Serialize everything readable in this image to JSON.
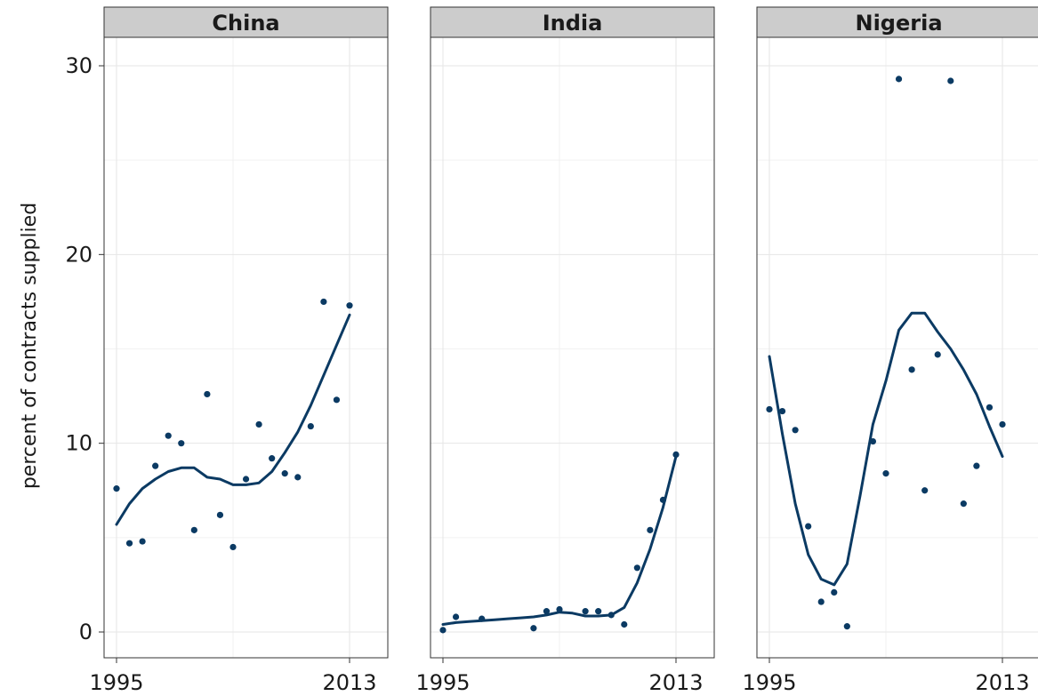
{
  "chart_data": {
    "type": "scatter",
    "ylabel": "percent of contracts supplied",
    "xlim": [
      1995,
      2013
    ],
    "ylim": [
      0,
      30
    ],
    "x_ticks": [
      1995,
      2013
    ],
    "y_ticks": [
      0,
      10,
      20,
      30
    ],
    "point_color": "#0b3a63",
    "line_color": "#0b3a63",
    "strip_color": "#cccccc",
    "grid": true,
    "panels": [
      {
        "name": "China",
        "points": [
          [
            1995,
            7.6
          ],
          [
            1996,
            4.7
          ],
          [
            1997,
            4.8
          ],
          [
            1998,
            8.8
          ],
          [
            1999,
            10.4
          ],
          [
            2000,
            10.0
          ],
          [
            2001,
            5.4
          ],
          [
            2002,
            12.6
          ],
          [
            2003,
            6.2
          ],
          [
            2004,
            4.5
          ],
          [
            2005,
            8.1
          ],
          [
            2006,
            11.0
          ],
          [
            2007,
            9.2
          ],
          [
            2008,
            8.4
          ],
          [
            2009,
            8.2
          ],
          [
            2010,
            10.9
          ],
          [
            2011,
            17.5
          ],
          [
            2012,
            12.3
          ],
          [
            2013,
            17.3
          ]
        ],
        "smooth": [
          [
            1995,
            5.7
          ],
          [
            1996,
            6.8
          ],
          [
            1997,
            7.6
          ],
          [
            1998,
            8.1
          ],
          [
            1999,
            8.5
          ],
          [
            2000,
            8.7
          ],
          [
            2001,
            8.7
          ],
          [
            2002,
            8.2
          ],
          [
            2003,
            8.1
          ],
          [
            2004,
            7.8
          ],
          [
            2005,
            7.8
          ],
          [
            2006,
            7.9
          ],
          [
            2007,
            8.5
          ],
          [
            2008,
            9.5
          ],
          [
            2009,
            10.6
          ],
          [
            2010,
            12.0
          ],
          [
            2011,
            13.6
          ],
          [
            2012,
            15.2
          ],
          [
            2013,
            16.8
          ]
        ]
      },
      {
        "name": "India",
        "points": [
          [
            1995,
            0.1
          ],
          [
            1996,
            0.8
          ],
          [
            1998,
            0.7
          ],
          [
            2002,
            0.2
          ],
          [
            2003,
            1.1
          ],
          [
            2004,
            1.2
          ],
          [
            2006,
            1.1
          ],
          [
            2007,
            1.1
          ],
          [
            2008,
            0.9
          ],
          [
            2009,
            0.4
          ],
          [
            2010,
            3.4
          ],
          [
            2011,
            5.4
          ],
          [
            2012,
            7.0
          ],
          [
            2013,
            9.4
          ]
        ],
        "smooth": [
          [
            1995,
            0.4
          ],
          [
            1996,
            0.5
          ],
          [
            1997,
            0.55
          ],
          [
            1998,
            0.6
          ],
          [
            1999,
            0.65
          ],
          [
            2000,
            0.7
          ],
          [
            2001,
            0.75
          ],
          [
            2002,
            0.8
          ],
          [
            2003,
            0.9
          ],
          [
            2004,
            1.05
          ],
          [
            2005,
            1.0
          ],
          [
            2006,
            0.85
          ],
          [
            2007,
            0.85
          ],
          [
            2008,
            0.9
          ],
          [
            2009,
            1.3
          ],
          [
            2010,
            2.6
          ],
          [
            2011,
            4.4
          ],
          [
            2012,
            6.6
          ],
          [
            2013,
            9.3
          ]
        ]
      },
      {
        "name": "Nigeria",
        "points": [
          [
            1995,
            11.8
          ],
          [
            1996,
            11.7
          ],
          [
            1997,
            10.7
          ],
          [
            1998,
            5.6
          ],
          [
            1999,
            1.6
          ],
          [
            2000,
            2.1
          ],
          [
            2001,
            0.3
          ],
          [
            2003,
            10.1
          ],
          [
            2004,
            8.4
          ],
          [
            2005,
            29.3
          ],
          [
            2006,
            13.9
          ],
          [
            2007,
            7.5
          ],
          [
            2008,
            14.7
          ],
          [
            2009,
            29.2
          ],
          [
            2010,
            6.8
          ],
          [
            2011,
            8.8
          ],
          [
            2012,
            11.9
          ],
          [
            2013,
            11.0
          ]
        ],
        "smooth": [
          [
            1995,
            14.6
          ],
          [
            1996,
            10.5
          ],
          [
            1997,
            6.8
          ],
          [
            1998,
            4.1
          ],
          [
            1999,
            2.8
          ],
          [
            2000,
            2.5
          ],
          [
            2001,
            3.6
          ],
          [
            2002,
            7.2
          ],
          [
            2003,
            11.0
          ],
          [
            2004,
            13.3
          ],
          [
            2005,
            16.0
          ],
          [
            2006,
            16.9
          ],
          [
            2007,
            16.9
          ],
          [
            2008,
            15.9
          ],
          [
            2009,
            15.0
          ],
          [
            2010,
            13.9
          ],
          [
            2011,
            12.6
          ],
          [
            2012,
            10.9
          ],
          [
            2013,
            9.3
          ]
        ]
      }
    ]
  }
}
